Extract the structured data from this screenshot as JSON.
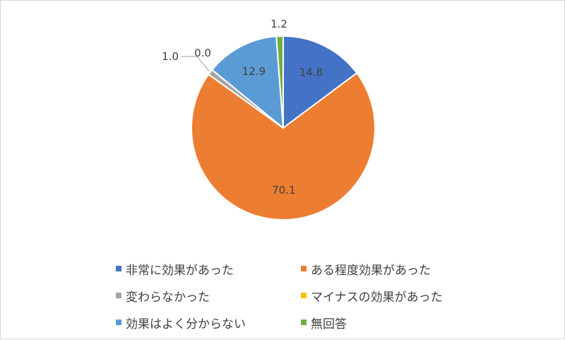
{
  "chart_data": {
    "type": "pie",
    "title": "",
    "categories": [
      "非常に効果があった",
      "ある程度効果があった",
      "変わらなかった",
      "マイナスの効果があった",
      "効果はよく分からない",
      "無回答"
    ],
    "values": [
      14.8,
      70.1,
      1.0,
      0.0,
      12.9,
      1.2
    ],
    "data_labels": [
      "14.8",
      "70.1",
      "1.0",
      "0.0",
      "12.9",
      "1.2"
    ],
    "colors": [
      "#4472C4",
      "#ED7D31",
      "#A5A5A5",
      "#FFC000",
      "#5B9BD5",
      "#70AD47"
    ],
    "start_angle": "12 o'clock, clockwise",
    "legend_position": "bottom",
    "leader_line_color": "#A6A6A6"
  }
}
